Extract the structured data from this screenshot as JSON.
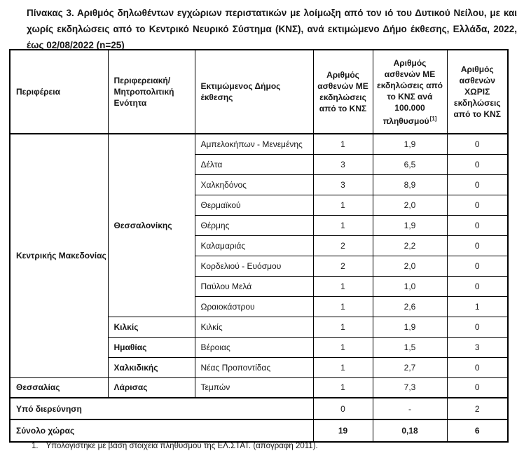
{
  "title": "Πίνακας 3. Αριθμός δηλωθέντων εγχώριων περιστατικών με λοίμωξη από τον ιό του Δυτικού Νείλου, με και χωρίς εκδηλώσεις από το Κεντρικό Νευρικό Σύστημα (ΚΝΣ), ανά εκτιμώμενο Δήμο έκθεσης, Ελλάδα, 2022, έως 02/08/2022 (n=25)",
  "table": {
    "headers": {
      "region": "Περιφέρεια",
      "unit": "Περιφερειακή/ Μητροπολιτική Ενότητα",
      "municipality": "Εκτιμώμενος Δήμος έκθεσης",
      "with_cns": "Αριθμός ασθενών ΜΕ εκδηλώσεις από το ΚΝΣ",
      "per100k": "Αριθμός ασθενών ΜΕ εκδηλώσεις από το ΚΝΣ ανά 100.000 πληθυσμού",
      "per100k_footnote_ref": "[1]",
      "without_cns": "Αριθμός ασθενών ΧΩΡΙΣ εκδηλώσεις από το ΚΝΣ"
    },
    "regions": [
      {
        "name": "Κεντρικής Μακεδονίας",
        "units": [
          {
            "name": "Θεσσαλονίκης",
            "municipalities": [
              {
                "name": "Αμπελοκήπων - Μενεμένης",
                "with_cns": "1",
                "per100k": "1,9",
                "without_cns": "0"
              },
              {
                "name": "Δέλτα",
                "with_cns": "3",
                "per100k": "6,5",
                "without_cns": "0"
              },
              {
                "name": "Χαλκηδόνος",
                "with_cns": "3",
                "per100k": "8,9",
                "without_cns": "0"
              },
              {
                "name": "Θερμαϊκού",
                "with_cns": "1",
                "per100k": "2,0",
                "without_cns": "0"
              },
              {
                "name": "Θέρμης",
                "with_cns": "1",
                "per100k": "1,9",
                "without_cns": "0"
              },
              {
                "name": "Καλαμαριάς",
                "with_cns": "2",
                "per100k": "2,2",
                "without_cns": "0"
              },
              {
                "name": "Κορδελιού - Ευόσμου",
                "with_cns": "2",
                "per100k": "2,0",
                "without_cns": "0"
              },
              {
                "name": "Παύλου Μελά",
                "with_cns": "1",
                "per100k": "1,0",
                "without_cns": "0"
              },
              {
                "name": "Ωραιοκάστρου",
                "with_cns": "1",
                "per100k": "2,6",
                "without_cns": "1"
              }
            ]
          },
          {
            "name": "Κιλκίς",
            "municipalities": [
              {
                "name": "Κιλκίς",
                "with_cns": "1",
                "per100k": "1,9",
                "without_cns": "0"
              }
            ]
          },
          {
            "name": "Ημαθίας",
            "municipalities": [
              {
                "name": "Βέροιας",
                "with_cns": "1",
                "per100k": "1,5",
                "without_cns": "3"
              }
            ]
          },
          {
            "name": "Χαλκιδικής",
            "municipalities": [
              {
                "name": "Νέας Προποντίδας",
                "with_cns": "1",
                "per100k": "2,7",
                "without_cns": "0"
              }
            ]
          }
        ]
      },
      {
        "name": "Θεσσαλίας",
        "units": [
          {
            "name": "Λάρισας",
            "municipalities": [
              {
                "name": "Τεμπών",
                "with_cns": "1",
                "per100k": "7,3",
                "without_cns": "0"
              }
            ]
          }
        ]
      }
    ],
    "summary_rows": [
      {
        "label": "Υπό διερεύνηση",
        "with_cns": "0",
        "per100k": "-",
        "without_cns": "2"
      },
      {
        "label": "Σύνολο χώρας",
        "with_cns": "19",
        "per100k": "0,18",
        "without_cns": "6"
      }
    ]
  },
  "footnote": {
    "marker": "1.",
    "text": "Υπολογίστηκε με βάση στοιχεία πληθυσμού της  ΕΛ.ΣΤΑΤ. (απογραφή 2011)."
  }
}
